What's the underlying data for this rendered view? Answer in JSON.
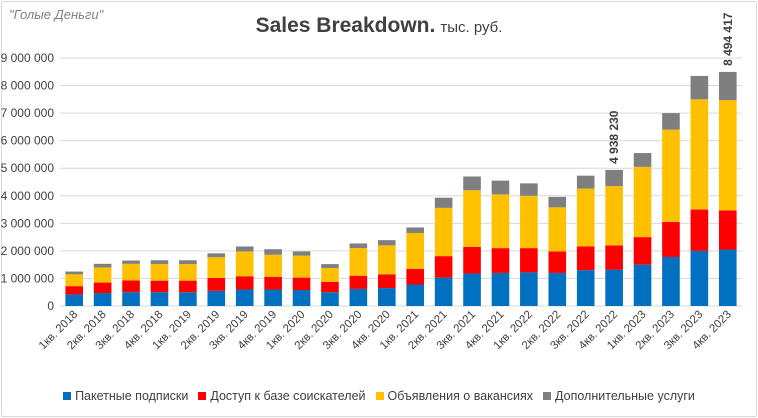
{
  "brand": "\"Голые Деньги\"",
  "title": "Sales Breakdown.",
  "unit": "тыс. руб.",
  "chart_data": {
    "type": "bar",
    "stacked": true,
    "title": "Sales Breakdown.",
    "subtitle": "тыс. руб.",
    "xlabel": "",
    "ylabel": "",
    "ylim": [
      0,
      9000000
    ],
    "yticks": [
      0,
      1000000,
      2000000,
      3000000,
      4000000,
      5000000,
      6000000,
      7000000,
      8000000,
      9000000
    ],
    "ytick_labels": [
      "0",
      "1 000 000",
      "2 000 000",
      "3 000 000",
      "4 000 000",
      "5 000 000",
      "6 000 000",
      "7 000 000",
      "8 000 000",
      "9 000 000"
    ],
    "grid": true,
    "legend_position": "bottom",
    "categories": [
      "1кв. 2018",
      "2кв. 2018",
      "3кв. 2018",
      "4кв. 2018",
      "1кв. 2019",
      "2кв. 2019",
      "3кв. 2019",
      "4кв. 2019",
      "1кв. 2020",
      "2кв. 2020",
      "3кв. 2020",
      "4кв. 2020",
      "1кв. 2021",
      "2кв. 2021",
      "3кв. 2021",
      "4кв. 2021",
      "1кв. 2022",
      "2кв. 2022",
      "3кв. 2022",
      "4кв. 2022",
      "1кв. 2023",
      "2кв. 2023",
      "3кв. 2023",
      "4кв. 2023"
    ],
    "series": [
      {
        "name": "Пакетные подписки",
        "color": "#0070c0",
        "values": [
          420000,
          470000,
          500000,
          500000,
          500000,
          550000,
          600000,
          600000,
          580000,
          500000,
          620000,
          650000,
          780000,
          1030000,
          1180000,
          1200000,
          1220000,
          1200000,
          1300000,
          1320000,
          1500000,
          1780000,
          2000000,
          2050000
        ]
      },
      {
        "name": "Доступ к базе соискателей",
        "color": "#ff0000",
        "values": [
          300000,
          380000,
          430000,
          420000,
          420000,
          470000,
          480000,
          460000,
          450000,
          380000,
          480000,
          500000,
          570000,
          780000,
          970000,
          900000,
          880000,
          780000,
          860000,
          880000,
          1000000,
          1270000,
          1500000,
          1420000
        ]
      },
      {
        "name": "Объявления о вакансиях",
        "color": "#ffc000",
        "values": [
          430000,
          550000,
          600000,
          600000,
          600000,
          750000,
          900000,
          800000,
          800000,
          500000,
          1000000,
          1050000,
          1300000,
          1750000,
          2050000,
          1950000,
          1900000,
          1600000,
          2100000,
          2150000,
          2550000,
          3350000,
          4000000,
          4000000
        ]
      },
      {
        "name": "Дополнительные услуги",
        "color": "#7f7f7f",
        "values": [
          100000,
          130000,
          120000,
          140000,
          140000,
          140000,
          180000,
          200000,
          150000,
          140000,
          170000,
          190000,
          200000,
          370000,
          500000,
          500000,
          450000,
          380000,
          470000,
          588230,
          500000,
          600000,
          850000,
          1024417
        ]
      }
    ],
    "data_labels": [
      {
        "category": "4кв. 2022",
        "text": "4 938 230"
      },
      {
        "category": "4кв. 2023",
        "text": "8 494 417"
      }
    ]
  }
}
